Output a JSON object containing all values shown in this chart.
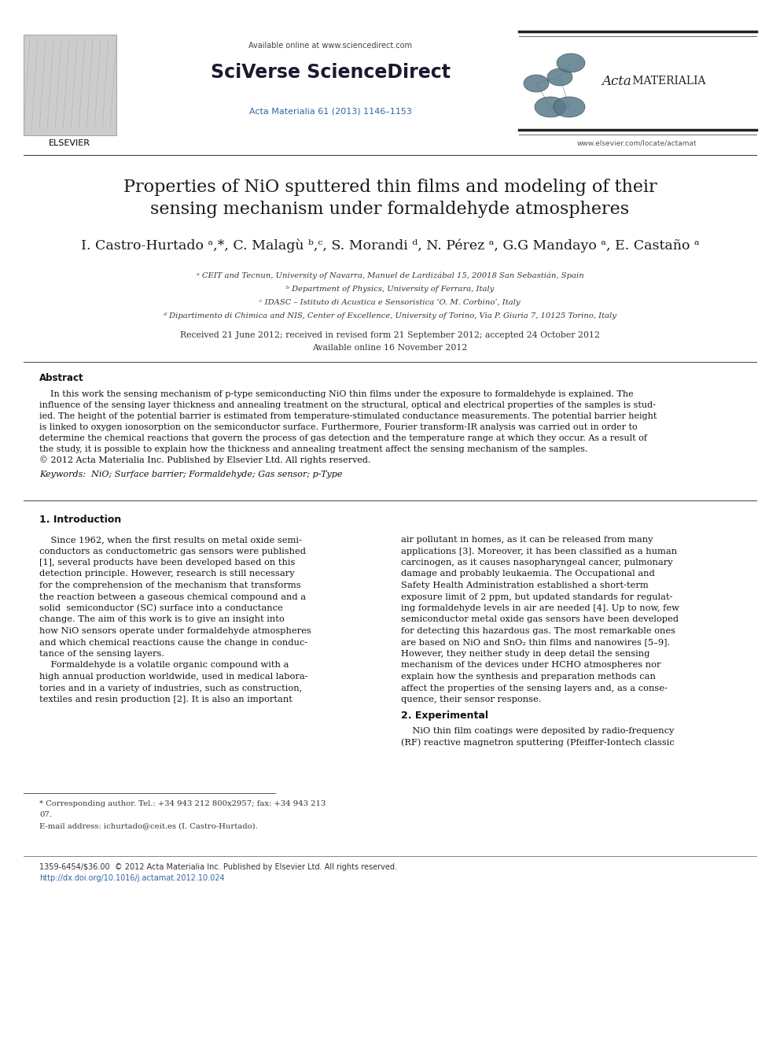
{
  "bg_color": "#ffffff",
  "header": {
    "available_online": "Available online at www.sciencedirect.com",
    "sciverse": "SciVerse ScienceDirect",
    "journal_ref": "Acta Materialia 61 (2013) 1146–1153",
    "journal_url": "www.elsevier.com/locate/actamat"
  },
  "title_line1": "Properties of NiO sputtered thin films and modeling of their",
  "title_line2": "sensing mechanism under formaldehyde atmospheres",
  "authors": "I. Castro-Hurtado ᵃ,*, C. Malagù ᵇ,ᶜ, S. Morandi ᵈ, N. Pérez ᵃ, G.G Mandayo ᵃ, E. Castaño ᵃ",
  "affiliations": [
    "ᵃ CEIT and Tecnun, University of Navarra, Manuel de Lardizábal 15, 20018 San Sebastián, Spain",
    "ᵇ Department of Physics, University of Ferrara, Italy",
    "ᶜ IDASC – Istituto di Acustica e Sensoristica ‘O. M. Corbino’, Italy",
    "ᵈ Dipartimento di Chimica and NIS, Center of Excellence, University of Torino, Via P. Giuria 7, 10125 Torino, Italy"
  ],
  "dates": "Received 21 June 2012; received in revised form 21 September 2012; accepted 24 October 2012",
  "available_online_date": "Available online 16 November 2012",
  "abstract_title": "Abstract",
  "abstract_lines": [
    "    In this work the sensing mechanism of p-type semiconducting NiO thin films under the exposure to formaldehyde is explained. The",
    "influence of the sensing layer thickness and annealing treatment on the structural, optical and electrical properties of the samples is stud-",
    "ied. The height of the potential barrier is estimated from temperature-stimulated conductance measurements. The potential barrier height",
    "is linked to oxygen ionosorption on the semiconductor surface. Furthermore, Fourier transform-IR analysis was carried out in order to",
    "determine the chemical reactions that govern the process of gas detection and the temperature range at which they occur. As a result of",
    "the study, it is possible to explain how the thickness and annealing treatment affect the sensing mechanism of the samples.",
    "© 2012 Acta Materialia Inc. Published by Elsevier Ltd. All rights reserved."
  ],
  "keywords": "Keywords:  NiO; Surface barrier; Formaldehyde; Gas sensor; p-Type",
  "section1_title": "1. Introduction",
  "left_col_lines": [
    "    Since 1962, when the first results on metal oxide semi-",
    "conductors as conductometric gas sensors were published",
    "[1], several products have been developed based on this",
    "detection principle. However, research is still necessary",
    "for the comprehension of the mechanism that transforms",
    "the reaction between a gaseous chemical compound and a",
    "solid  semiconductor (SC) surface into a conductance",
    "change. The aim of this work is to give an insight into",
    "how NiO sensors operate under formaldehyde atmospheres",
    "and which chemical reactions cause the change in conduc-",
    "tance of the sensing layers.",
    "    Formaldehyde is a volatile organic compound with a",
    "high annual production worldwide, used in medical labora-",
    "tories and in a variety of industries, such as construction,",
    "textiles and resin production [2]. It is also an important"
  ],
  "right_col_lines": [
    "air pollutant in homes, as it can be released from many",
    "applications [3]. Moreover, it has been classified as a human",
    "carcinogen, as it causes nasopharyngeal cancer, pulmonary",
    "damage and probably leukaemia. The Occupational and",
    "Safety Health Administration established a short-term",
    "exposure limit of 2 ppm, but updated standards for regulat-",
    "ing formaldehyde levels in air are needed [4]. Up to now, few",
    "semiconductor metal oxide gas sensors have been developed",
    "for detecting this hazardous gas. The most remarkable ones",
    "are based on NiO and SnO₂ thin films and nanowires [5–9].",
    "However, they neither study in deep detail the sensing",
    "mechanism of the devices under HCHO atmospheres nor",
    "explain how the synthesis and preparation methods can",
    "affect the properties of the sensing layers and, as a conse-",
    "quence, their sensor response."
  ],
  "section2_title": "2. Experimental",
  "section2_right_lines": [
    "    NiO thin film coatings were deposited by radio-frequency",
    "(RF) reactive magnetron sputtering (Pfeiffer-Iontech classic"
  ],
  "footnote1a": "* Corresponding author. Tel.: +34 943 212 800x2957; fax: +34 943 213",
  "footnote1b": "07.",
  "footnote2": "E-mail address: ichurtado@ceit.es (I. Castro-Hurtado).",
  "footer_left": "1359-6454/$36.00  © 2012 Acta Materialia Inc. Published by Elsevier Ltd. All rights reserved.",
  "footer_doi": "http://dx.doi.org/10.1016/j.actamat.2012.10.024"
}
